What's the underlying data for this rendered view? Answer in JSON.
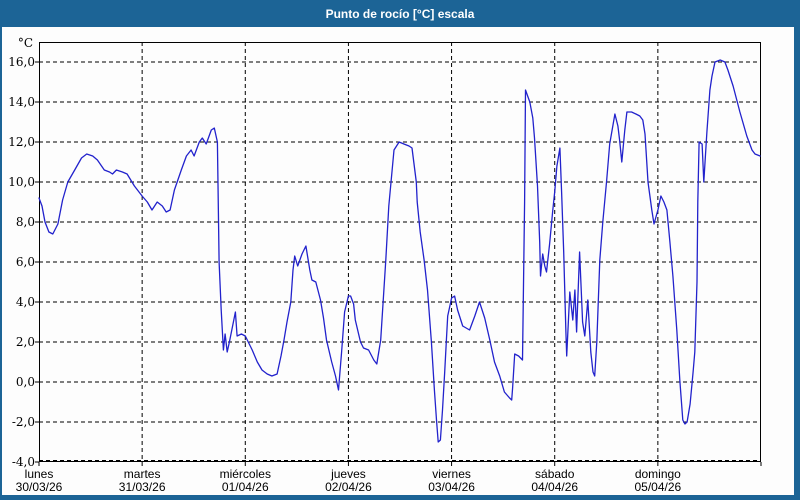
{
  "window": {
    "title": "Punto de rocío [°C] escala"
  },
  "theme": {
    "frame_color": "#1c6496",
    "title_text_color": "#ffffff",
    "panel_bg": "#fdfdfd",
    "grid_color": "#000000",
    "axis_color": "#000000",
    "line_color": "#2222cc",
    "label_color": "#000000"
  },
  "chart_data": {
    "type": "line",
    "title": "Punto de rocío [°C] escala",
    "ylabel": "°C",
    "ylim": [
      -4,
      17
    ],
    "grid": true,
    "legend": "none",
    "y_ticks": [
      {
        "value": 16,
        "label": "16,0"
      },
      {
        "value": 14,
        "label": "14,0"
      },
      {
        "value": 12,
        "label": "12,0"
      },
      {
        "value": 10,
        "label": "10,0"
      },
      {
        "value": 8,
        "label": "8,0"
      },
      {
        "value": 6,
        "label": "6,0"
      },
      {
        "value": 4,
        "label": "4,0"
      },
      {
        "value": 2,
        "label": "2,0"
      },
      {
        "value": 0,
        "label": "0,0"
      },
      {
        "value": -2,
        "label": "-2,0"
      },
      {
        "value": -4,
        "label": "-4,0"
      }
    ],
    "x_unit": "hours since 30/03/26 00:00",
    "x_range": [
      0,
      168
    ],
    "x_days": [
      {
        "name": "lunes",
        "date": "30/03/26"
      },
      {
        "name": "martes",
        "date": "31/03/26"
      },
      {
        "name": "miércoles",
        "date": "01/04/26"
      },
      {
        "name": "jueves",
        "date": "02/04/26"
      },
      {
        "name": "viernes",
        "date": "03/04/26"
      },
      {
        "name": "sábado",
        "date": "04/04/26"
      },
      {
        "name": "domingo",
        "date": "05/04/26"
      }
    ],
    "series": [
      {
        "name": "Punto de rocío [°C]",
        "color": "#2222cc",
        "points": [
          [
            0,
            9.2
          ],
          [
            0.7,
            8.8
          ],
          [
            1.4,
            8.0
          ],
          [
            2.3,
            7.5
          ],
          [
            3.2,
            7.4
          ],
          [
            4.4,
            7.9
          ],
          [
            5.5,
            9.1
          ],
          [
            6.7,
            10.0
          ],
          [
            8.3,
            10.6
          ],
          [
            9.9,
            11.2
          ],
          [
            11.1,
            11.4
          ],
          [
            12.5,
            11.3
          ],
          [
            13.6,
            11.1
          ],
          [
            15.2,
            10.6
          ],
          [
            16.4,
            10.5
          ],
          [
            17.1,
            10.4
          ],
          [
            18.0,
            10.6
          ],
          [
            19.4,
            10.5
          ],
          [
            20.5,
            10.4
          ],
          [
            22.2,
            9.8
          ],
          [
            24.0,
            9.3
          ],
          [
            25.2,
            9.0
          ],
          [
            26.3,
            8.6
          ],
          [
            27.5,
            9.0
          ],
          [
            28.7,
            8.8
          ],
          [
            29.6,
            8.5
          ],
          [
            30.5,
            8.6
          ],
          [
            31.5,
            9.6
          ],
          [
            33.1,
            10.6
          ],
          [
            34.3,
            11.3
          ],
          [
            35.4,
            11.6
          ],
          [
            36.1,
            11.3
          ],
          [
            37.3,
            12.0
          ],
          [
            38.0,
            12.2
          ],
          [
            38.9,
            11.9
          ],
          [
            40.1,
            12.6
          ],
          [
            40.8,
            12.7
          ],
          [
            41.5,
            12.0
          ],
          [
            41.9,
            6.0
          ],
          [
            42.4,
            3.6
          ],
          [
            42.9,
            1.6
          ],
          [
            43.3,
            2.4
          ],
          [
            43.8,
            1.5
          ],
          [
            44.3,
            2.0
          ],
          [
            45.7,
            3.5
          ],
          [
            46.1,
            2.3
          ],
          [
            47.1,
            2.4
          ],
          [
            48.0,
            2.3
          ],
          [
            49.6,
            1.6
          ],
          [
            50.8,
            1.0
          ],
          [
            51.9,
            0.6
          ],
          [
            53.1,
            0.4
          ],
          [
            54.2,
            0.3
          ],
          [
            55.4,
            0.4
          ],
          [
            56.3,
            1.3
          ],
          [
            57.0,
            2.1
          ],
          [
            57.7,
            3.0
          ],
          [
            58.6,
            4.0
          ],
          [
            59.1,
            5.6
          ],
          [
            59.5,
            6.3
          ],
          [
            60.2,
            5.8
          ],
          [
            61.2,
            6.4
          ],
          [
            62.1,
            6.8
          ],
          [
            63.0,
            5.6
          ],
          [
            63.5,
            5.1
          ],
          [
            64.4,
            5.0
          ],
          [
            65.5,
            4.1
          ],
          [
            66.2,
            3.2
          ],
          [
            66.9,
            2.1
          ],
          [
            68.1,
            1.0
          ],
          [
            69.0,
            0.3
          ],
          [
            69.7,
            -0.4
          ],
          [
            70.4,
            1.5
          ],
          [
            71.1,
            3.5
          ],
          [
            72.0,
            4.3
          ],
          [
            72.5,
            4.3
          ],
          [
            73.2,
            3.9
          ],
          [
            73.6,
            3.1
          ],
          [
            74.8,
            2.0
          ],
          [
            75.5,
            1.7
          ],
          [
            76.7,
            1.6
          ],
          [
            77.9,
            1.1
          ],
          [
            78.6,
            0.9
          ],
          [
            79.5,
            2.1
          ],
          [
            80.7,
            6.1
          ],
          [
            81.4,
            8.8
          ],
          [
            82.6,
            11.6
          ],
          [
            83.8,
            12.0
          ],
          [
            84.9,
            11.9
          ],
          [
            86.1,
            11.8
          ],
          [
            86.8,
            11.7
          ],
          [
            87.8,
            10.0
          ],
          [
            88.0,
            9.0
          ],
          [
            88.7,
            7.5
          ],
          [
            89.6,
            6.1
          ],
          [
            90.4,
            4.6
          ],
          [
            91.3,
            2.0
          ],
          [
            92.0,
            -0.4
          ],
          [
            92.5,
            -1.9
          ],
          [
            92.9,
            -3.0
          ],
          [
            93.4,
            -2.9
          ],
          [
            93.9,
            -1.4
          ],
          [
            94.4,
            0.5
          ],
          [
            94.8,
            2.1
          ],
          [
            95.1,
            3.3
          ],
          [
            96.0,
            4.2
          ],
          [
            96.7,
            4.3
          ],
          [
            97.4,
            3.6
          ],
          [
            98.6,
            2.8
          ],
          [
            100.2,
            2.6
          ],
          [
            101.4,
            3.3
          ],
          [
            102.5,
            4.0
          ],
          [
            103.7,
            3.2
          ],
          [
            104.9,
            2.1
          ],
          [
            106.0,
            1.0
          ],
          [
            107.2,
            0.3
          ],
          [
            108.3,
            -0.5
          ],
          [
            109.5,
            -0.8
          ],
          [
            110.0,
            -0.9
          ],
          [
            110.2,
            -0.3
          ],
          [
            110.7,
            1.4
          ],
          [
            111.6,
            1.3
          ],
          [
            112.5,
            1.1
          ],
          [
            113.0,
            9.0
          ],
          [
            113.2,
            14.6
          ],
          [
            114.2,
            14.0
          ],
          [
            114.9,
            13.2
          ],
          [
            115.3,
            12.2
          ],
          [
            116.0,
            9.8
          ],
          [
            116.5,
            7.0
          ],
          [
            116.7,
            5.3
          ],
          [
            117.2,
            6.4
          ],
          [
            117.7,
            5.8
          ],
          [
            118.1,
            5.5
          ],
          [
            118.8,
            6.9
          ],
          [
            119.5,
            8.5
          ],
          [
            120.0,
            9.5
          ],
          [
            120.5,
            10.8
          ],
          [
            121.2,
            11.7
          ],
          [
            121.6,
            9.5
          ],
          [
            122.1,
            6.5
          ],
          [
            122.6,
            2.5
          ],
          [
            122.8,
            1.3
          ],
          [
            123.5,
            4.5
          ],
          [
            124.2,
            3.1
          ],
          [
            124.7,
            4.6
          ],
          [
            125.1,
            2.5
          ],
          [
            125.8,
            6.5
          ],
          [
            126.5,
            3.0
          ],
          [
            127.0,
            2.3
          ],
          [
            127.7,
            4.1
          ],
          [
            128.4,
            1.5
          ],
          [
            128.9,
            0.5
          ],
          [
            129.3,
            0.3
          ],
          [
            129.8,
            2.0
          ],
          [
            130.5,
            6.1
          ],
          [
            131.2,
            8.0
          ],
          [
            132.1,
            10.1
          ],
          [
            132.8,
            11.9
          ],
          [
            134.0,
            13.4
          ],
          [
            134.7,
            12.8
          ],
          [
            135.1,
            12.1
          ],
          [
            135.6,
            11.0
          ],
          [
            136.3,
            12.6
          ],
          [
            136.8,
            13.5
          ],
          [
            137.9,
            13.5
          ],
          [
            138.9,
            13.4
          ],
          [
            139.8,
            13.3
          ],
          [
            140.5,
            13.1
          ],
          [
            141.0,
            12.4
          ],
          [
            141.7,
            10.0
          ],
          [
            142.6,
            8.6
          ],
          [
            143.1,
            7.9
          ],
          [
            144.0,
            8.6
          ],
          [
            144.7,
            9.3
          ],
          [
            145.4,
            9.0
          ],
          [
            146.1,
            8.6
          ],
          [
            146.8,
            7.0
          ],
          [
            147.5,
            5.3
          ],
          [
            148.4,
            2.6
          ],
          [
            149.1,
            0.1
          ],
          [
            149.8,
            -1.9
          ],
          [
            150.3,
            -2.1
          ],
          [
            150.8,
            -2.0
          ],
          [
            151.5,
            -1.1
          ],
          [
            152.2,
            0.5
          ],
          [
            152.6,
            1.5
          ],
          [
            153.1,
            5.0
          ],
          [
            153.3,
            9.0
          ],
          [
            153.6,
            12.0
          ],
          [
            154.3,
            11.9
          ],
          [
            154.7,
            10.0
          ],
          [
            155.4,
            12.5
          ],
          [
            156.1,
            14.6
          ],
          [
            156.6,
            15.3
          ],
          [
            157.3,
            16.0
          ],
          [
            158.5,
            16.1
          ],
          [
            159.6,
            16.0
          ],
          [
            160.3,
            15.6
          ],
          [
            161.5,
            14.8
          ],
          [
            163.1,
            13.5
          ],
          [
            164.7,
            12.3
          ],
          [
            165.9,
            11.6
          ],
          [
            166.6,
            11.4
          ],
          [
            167.8,
            11.3
          ]
        ]
      }
    ]
  }
}
